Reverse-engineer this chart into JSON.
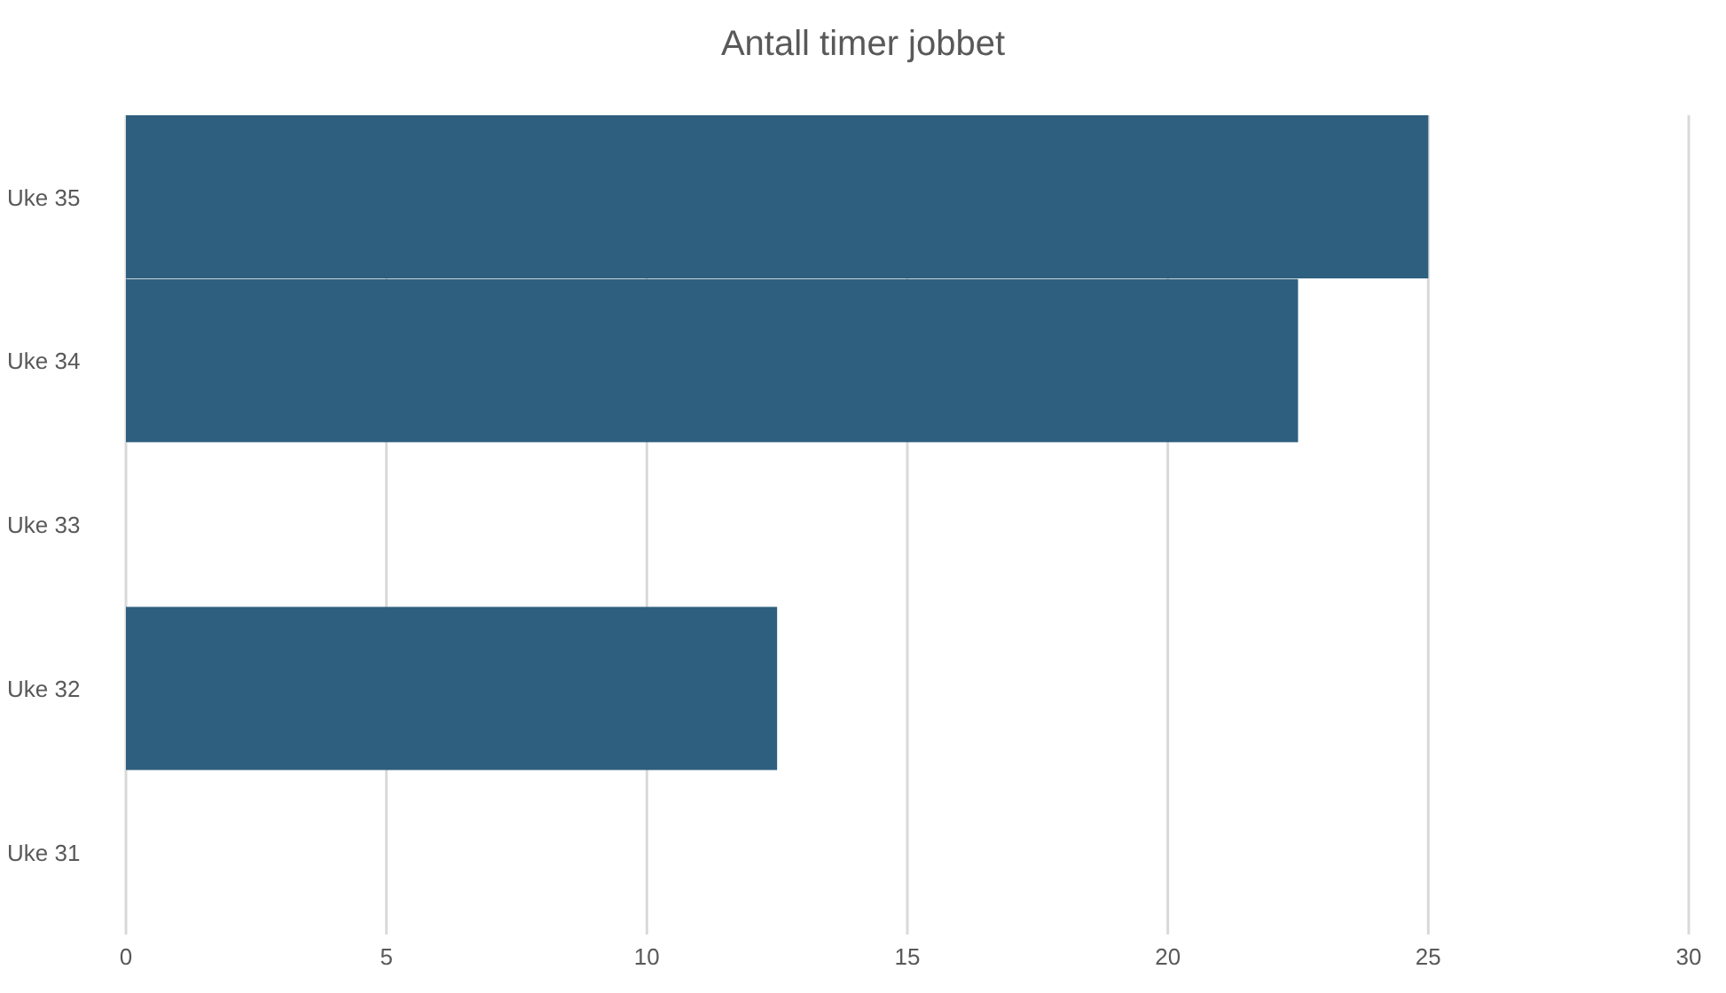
{
  "chart_data": {
    "type": "bar",
    "orientation": "horizontal",
    "title": "Antall timer jobbet",
    "categories": [
      "Uke 35",
      "Uke 34",
      "Uke 33",
      "Uke 32",
      "Uke 31"
    ],
    "values": [
      25,
      22.5,
      0,
      12.5,
      0
    ],
    "color": "#2e5f7e",
    "xlim": [
      0,
      30
    ],
    "xticks": [
      0,
      5,
      10,
      15,
      20,
      25,
      30
    ],
    "grid": "x",
    "legend": false
  }
}
